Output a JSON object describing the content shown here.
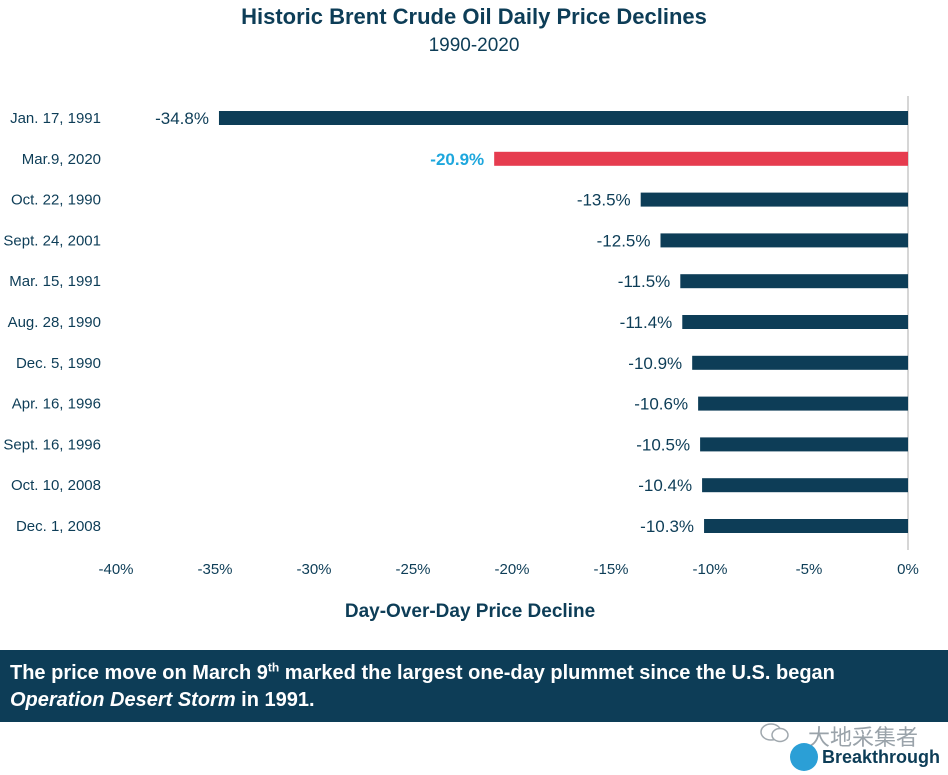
{
  "chart_data": {
    "type": "bar",
    "orientation": "horizontal",
    "title": "Historic Brent Crude Oil Daily Price Declines",
    "subtitle": "1990-2020",
    "xlabel": "Day-Over-Day Price Decline",
    "xlim": [
      -40,
      0
    ],
    "xticks": [
      "-40%",
      "-35%",
      "-30%",
      "-25%",
      "-20%",
      "-15%",
      "-10%",
      "-5%",
      "0%"
    ],
    "categories": [
      "Jan. 17, 1991",
      "Mar.9, 2020",
      "Oct. 22, 1990",
      "Sept. 24, 2001",
      "Mar. 15, 1991",
      "Aug. 28, 1990",
      "Dec. 5, 1990",
      "Apr. 16, 1996",
      "Sept. 16, 1996",
      "Oct. 10, 2008",
      "Dec. 1, 2008"
    ],
    "values": [
      -34.8,
      -20.9,
      -13.5,
      -12.5,
      -11.5,
      -11.4,
      -10.9,
      -10.6,
      -10.5,
      -10.4,
      -10.3
    ],
    "value_labels": [
      "-34.8%",
      "-20.9%",
      "-13.5%",
      "-12.5%",
      "-11.5%",
      "-11.4%",
      "-10.9%",
      "-10.6%",
      "-10.5%",
      "-10.4%",
      "-10.3%"
    ],
    "highlight_index": 1,
    "colors": {
      "bar": "#0d3d57",
      "highlight": "#e63c4f",
      "highlight_label": "#1ea7dd",
      "text": "#0d3d57",
      "axis": "#c8c8c8"
    },
    "grid": false,
    "legend": false
  },
  "banner": {
    "text_1": "The price move on March 9",
    "sup": "th",
    "text_2": " marked the largest one-day plummet since the U.S. began",
    "italic": "Operation Desert Storm",
    "text_3": " in 1991."
  },
  "watermark": {
    "text": "大地采集者"
  },
  "logo": {
    "text": "Breakthrough"
  }
}
